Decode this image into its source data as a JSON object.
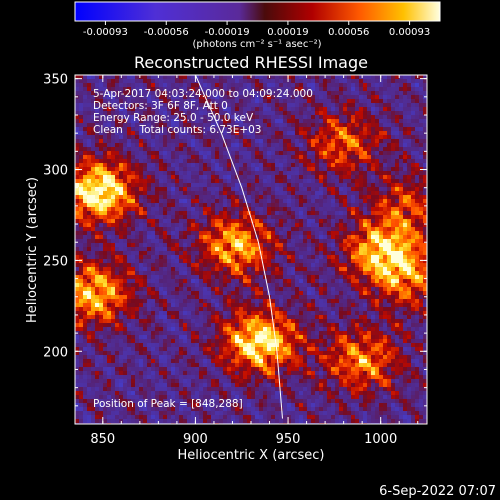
{
  "chart_data": {
    "type": "heatmap",
    "title": "Reconstructed RHESSI Image",
    "xlabel": "Heliocentric X (arcsec)",
    "ylabel": "Heliocentric Y (arcsec)",
    "xlim": [
      835,
      1025
    ],
    "ylim": [
      160,
      352
    ],
    "x_ticks": [
      "850",
      "900",
      "950",
      "1000"
    ],
    "y_ticks": [
      "200",
      "250",
      "300",
      "350"
    ],
    "colorbar": {
      "ticks": [
        "-0.00093",
        "-0.00056",
        "-0.00019",
        "0.00019",
        "0.00056",
        "0.00093"
      ],
      "range": [
        -0.00093,
        0.00093
      ],
      "unit_label": "(photons cm⁻² s⁻¹ asec⁻²)"
    },
    "annotations": {
      "time_range": "5-Apr-2017 04:03:24.000 to 04:09:24.000",
      "detectors": "Detectors: 3F 6F 8F, Att 0",
      "energy": "Energy Range: 25.0 - 50.0 keV",
      "method_counts": "Clean     Total counts: 6.73E+03",
      "peak": "Position of Peak = [848,288]"
    },
    "peak": [
      848,
      288
    ],
    "bright_regions": [
      {
        "x": 848,
        "y": 288,
        "intensity": 1.0
      },
      {
        "x": 845,
        "y": 232,
        "intensity": 0.8
      },
      {
        "x": 922,
        "y": 258,
        "intensity": 0.75
      },
      {
        "x": 935,
        "y": 205,
        "intensity": 0.95
      },
      {
        "x": 990,
        "y": 195,
        "intensity": 0.65
      },
      {
        "x": 1000,
        "y": 255,
        "intensity": 0.75
      },
      {
        "x": 980,
        "y": 315,
        "intensity": 0.55
      },
      {
        "x": 1015,
        "y": 240,
        "intensity": 0.5
      },
      {
        "x": 1015,
        "y": 280,
        "intensity": 0.45
      }
    ],
    "limb_curve": [
      [
        900,
        352
      ],
      [
        914,
        320
      ],
      [
        925,
        290
      ],
      [
        934,
        260
      ],
      [
        940,
        230
      ],
      [
        944,
        200
      ],
      [
        947,
        163
      ]
    ]
  },
  "footer_date": "6-Sep-2022 07:07"
}
